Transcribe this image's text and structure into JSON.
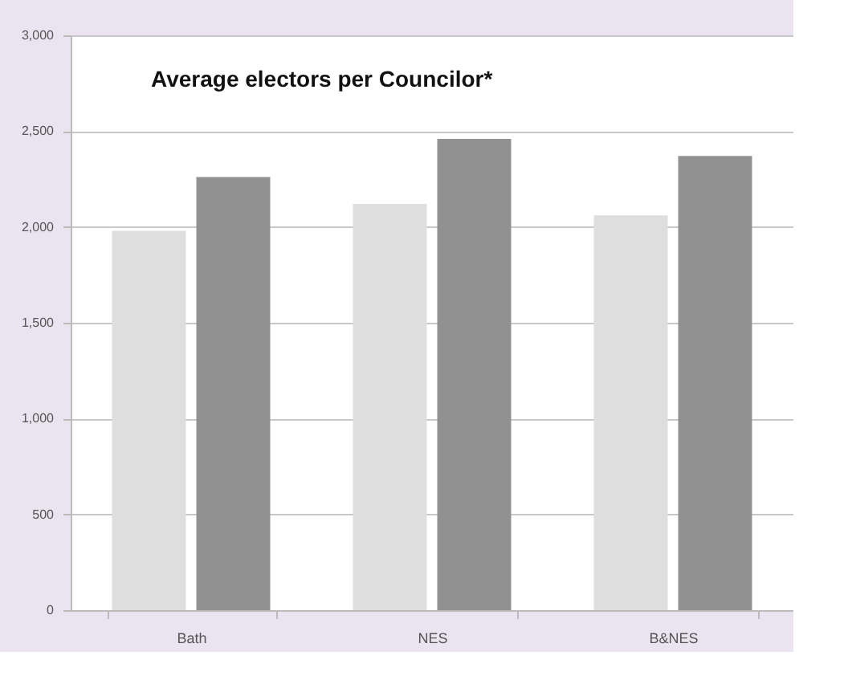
{
  "chart_data": {
    "type": "bar",
    "title": "Average electors per Councilor*",
    "categories": [
      "Bath",
      "NES",
      "B&NES"
    ],
    "series": [
      {
        "color": "#dedede",
        "values": [
          1980,
          2120,
          2060
        ]
      },
      {
        "color": "#919191",
        "values": [
          2260,
          2460,
          2370
        ]
      }
    ],
    "ylim": [
      0,
      3000
    ],
    "yticks": [
      {
        "value": 0,
        "label": "0"
      },
      {
        "value": 500,
        "label": "500"
      },
      {
        "value": 1000,
        "label": "1,000"
      },
      {
        "value": 1500,
        "label": "1,500"
      },
      {
        "value": 2000,
        "label": "2,000"
      },
      {
        "value": 2500,
        "label": "2,500"
      },
      {
        "value": 3000,
        "label": "3,000"
      }
    ],
    "grid": "y",
    "legend": false
  }
}
